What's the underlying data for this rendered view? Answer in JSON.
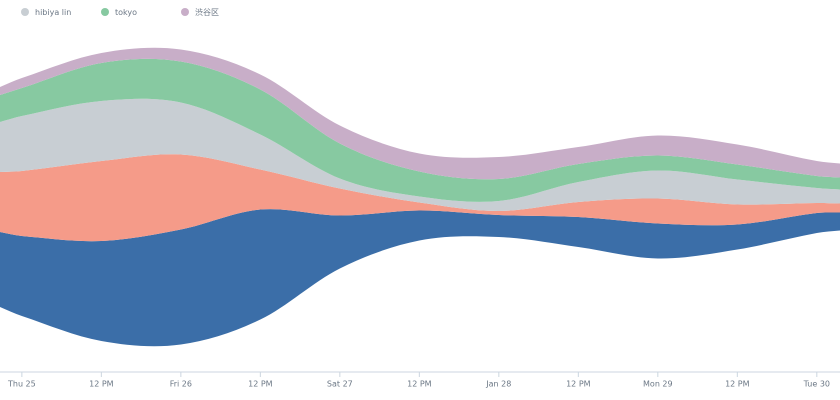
{
  "chart_data": {
    "type": "streamgraph",
    "x": [
      -3.3,
      0,
      12,
      24,
      36,
      48,
      60,
      72,
      84,
      96,
      108,
      120,
      123.5
    ],
    "xlim": [
      -3.3,
      123.5
    ],
    "xticks": [
      {
        "value": 0,
        "label": "Thu 25"
      },
      {
        "value": 12,
        "label": "12 PM"
      },
      {
        "value": 24,
        "label": "Fri 26"
      },
      {
        "value": 36,
        "label": "12 PM"
      },
      {
        "value": 48,
        "label": "Sat 27"
      },
      {
        "value": 60,
        "label": "12 PM"
      },
      {
        "value": 72,
        "label": "Jan 28"
      },
      {
        "value": 84,
        "label": "12 PM"
      },
      {
        "value": 96,
        "label": "Mon 29"
      },
      {
        "value": 108,
        "label": "12 PM"
      },
      {
        "value": 120,
        "label": "Tue 30"
      }
    ],
    "series": [
      {
        "color": "#3b6ea8",
        "values": [
          75,
          80,
          100,
          115,
          110,
          53,
          30,
          22,
          30,
          35,
          25,
          20,
          18
        ]
      },
      {
        "color": "#f59b89",
        "values": [
          60,
          65,
          80,
          75,
          40,
          27,
          8,
          4,
          15,
          25,
          20,
          10,
          9
        ]
      },
      {
        "name": "hibiya lin",
        "color": "#c8ced3",
        "values": [
          50,
          55,
          60,
          52,
          35,
          10,
          6,
          10,
          20,
          28,
          25,
          15,
          14
        ]
      },
      {
        "name": "tokyo",
        "color": "#87c9a1",
        "values": [
          27,
          28,
          38,
          41,
          45,
          35,
          25,
          22,
          18,
          15,
          15,
          12,
          12
        ]
      },
      {
        "name": "渋谷区",
        "color": "#c8aec8",
        "values": [
          8,
          10,
          10,
          12,
          15,
          18,
          18,
          22,
          17,
          20,
          20,
          15,
          14
        ]
      }
    ],
    "legend_position": "top-left"
  }
}
